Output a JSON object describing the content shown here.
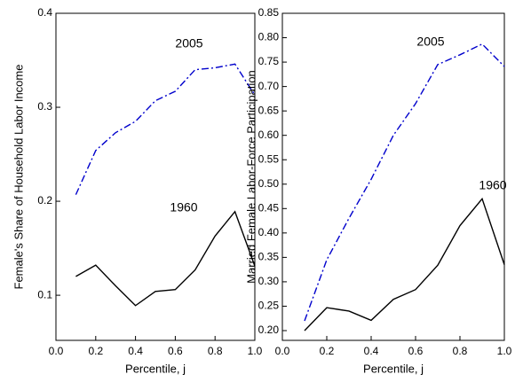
{
  "chart_data": [
    {
      "type": "line",
      "y_label": "Female's Share of Household Labor Income",
      "x_label": "Percentile, j",
      "x": [
        0.1,
        0.2,
        0.3,
        0.4,
        0.5,
        0.6,
        0.7,
        0.8,
        0.9,
        1.0
      ],
      "series": [
        {
          "name": "2005",
          "color": "#0000cc",
          "style": "dashdot",
          "values": [
            0.207,
            0.254,
            0.273,
            0.285,
            0.307,
            0.317,
            0.34,
            0.342,
            0.346,
            0.313
          ]
        },
        {
          "name": "1960",
          "color": "#000000",
          "style": "solid",
          "values": [
            0.12,
            0.132,
            0.11,
            0.089,
            0.104,
            0.106,
            0.127,
            0.163,
            0.189,
            0.131
          ]
        }
      ],
      "xlim": [
        0,
        1
      ],
      "xticks": [
        {
          "value": 0,
          "label": "0.0"
        },
        0.2,
        0.4,
        0.6,
        0.8,
        {
          "value": 1,
          "label": "1.0"
        }
      ],
      "ylim": [
        0.052,
        0.4
      ],
      "yticks": [
        0.1,
        0.2,
        0.3,
        0.4
      ]
    },
    {
      "type": "line",
      "y_label": "Married Female Labor-Force Participation",
      "x_label": "Percentile, j",
      "x": [
        0.1,
        0.2,
        0.3,
        0.4,
        0.5,
        0.6,
        0.7,
        0.8,
        0.9,
        1.0
      ],
      "series": [
        {
          "name": "2005",
          "color": "#0000cc",
          "style": "dashdot",
          "values": [
            0.22,
            0.345,
            0.43,
            0.51,
            0.6,
            0.665,
            0.745,
            0.765,
            0.787,
            0.741
          ]
        },
        {
          "name": "1960",
          "color": "#000000",
          "style": "solid",
          "values": [
            0.2,
            0.247,
            0.24,
            0.221,
            0.264,
            0.284,
            0.334,
            0.415,
            0.47,
            0.335
          ]
        }
      ],
      "xlim": [
        0,
        1
      ],
      "xticks": [
        {
          "value": 0,
          "label": "0.0"
        },
        0.2,
        0.4,
        0.6,
        0.8,
        {
          "value": 1,
          "label": "1.0"
        }
      ],
      "ylim": [
        0.18,
        0.85
      ],
      "yticks": [
        {
          "value": 0.2,
          "label": "0.20"
        },
        {
          "value": 0.25,
          "label": "0.25"
        },
        {
          "value": 0.3,
          "label": "0.30"
        },
        {
          "value": 0.35,
          "label": "0.35"
        },
        {
          "value": 0.4,
          "label": "0.40"
        },
        {
          "value": 0.45,
          "label": "0.45"
        },
        {
          "value": 0.5,
          "label": "0.50"
        },
        {
          "value": 0.55,
          "label": "0.55"
        },
        {
          "value": 0.6,
          "label": "0.60"
        },
        {
          "value": 0.65,
          "label": "0.65"
        },
        {
          "value": 0.7,
          "label": "0.70"
        },
        {
          "value": 0.75,
          "label": "0.75"
        },
        {
          "value": 0.8,
          "label": "0.80"
        },
        {
          "value": 0.85,
          "label": "0.85"
        }
      ]
    }
  ]
}
